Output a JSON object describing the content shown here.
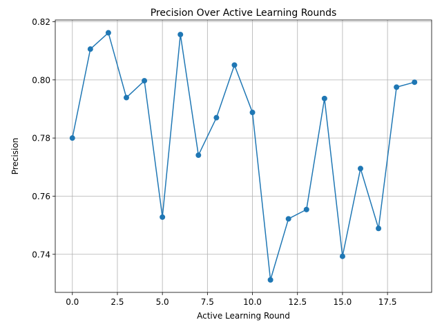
{
  "chart_data": {
    "type": "line",
    "title": "Precision Over Active Learning Rounds",
    "xlabel": "Active Learning Round",
    "ylabel": "Precision",
    "xlim": [
      -0.95,
      19.95
    ],
    "ylim": [
      0.7269,
      0.8206
    ],
    "grid": true,
    "x_ticks": [
      0.0,
      2.5,
      5.0,
      7.5,
      10.0,
      12.5,
      15.0,
      17.5
    ],
    "x_tick_labels": [
      "0.0",
      "2.5",
      "5.0",
      "7.5",
      "10.0",
      "12.5",
      "15.0",
      "17.5"
    ],
    "y_ticks": [
      0.74,
      0.76,
      0.78,
      0.8,
      0.82
    ],
    "y_tick_labels": [
      "0.74",
      "0.76",
      "0.78",
      "0.80",
      "0.82"
    ],
    "line_color": "#1f77b4",
    "marker": "circle",
    "series": [
      {
        "x": [
          0,
          1,
          2,
          3,
          4,
          5,
          6,
          7,
          8,
          9,
          10,
          11,
          12,
          13,
          14,
          15,
          16,
          17,
          18,
          19
        ],
        "values": [
          0.78,
          0.8106,
          0.8162,
          0.7939,
          0.7997,
          0.7528,
          0.8156,
          0.7741,
          0.787,
          0.8051,
          0.7888,
          0.7312,
          0.7522,
          0.7554,
          0.7936,
          0.7393,
          0.7695,
          0.7489,
          0.7975,
          0.7992
        ]
      }
    ]
  }
}
